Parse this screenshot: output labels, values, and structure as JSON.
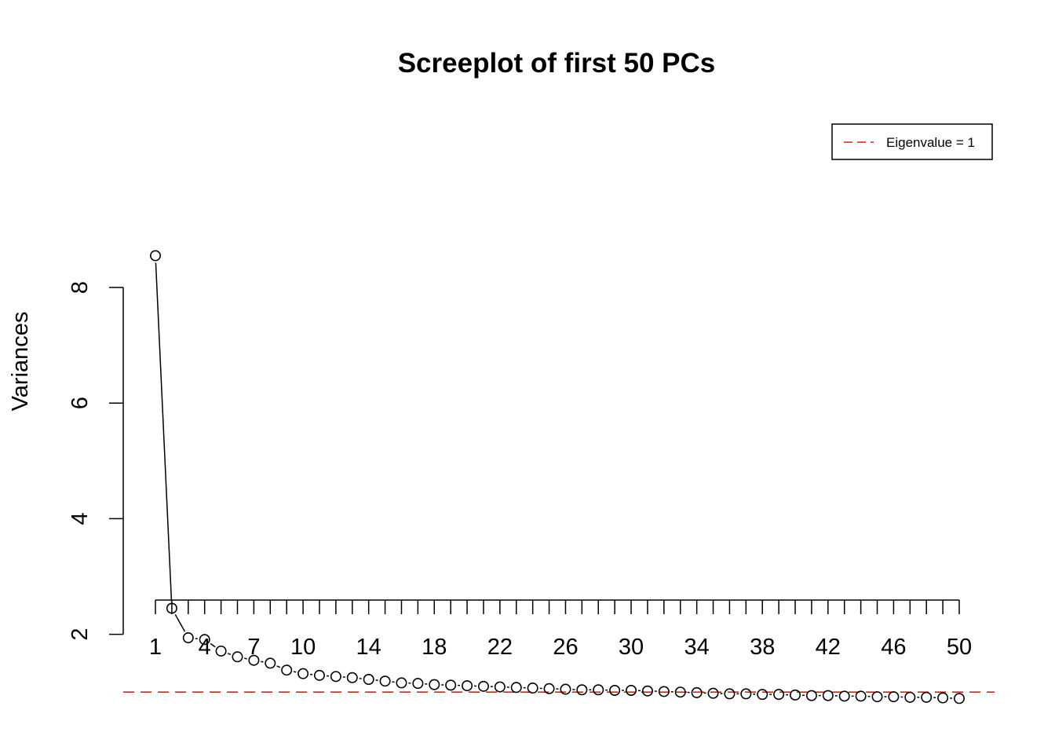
{
  "chart_data": {
    "type": "line",
    "title": "Screeplot of first 50 PCs",
    "xlabel": "",
    "ylabel": "Variances",
    "x": [
      1,
      2,
      3,
      4,
      5,
      6,
      7,
      8,
      9,
      10,
      11,
      12,
      13,
      14,
      15,
      16,
      17,
      18,
      19,
      20,
      21,
      22,
      23,
      24,
      25,
      26,
      27,
      28,
      29,
      30,
      31,
      32,
      33,
      34,
      35,
      36,
      37,
      38,
      39,
      40,
      41,
      42,
      43,
      44,
      45,
      46,
      47,
      48,
      49,
      50
    ],
    "x_tick_labels": [
      "1",
      "4",
      "7",
      "10",
      "14",
      "18",
      "22",
      "26",
      "30",
      "34",
      "38",
      "42",
      "46",
      "50"
    ],
    "x_tick_label_values": [
      1,
      4,
      7,
      10,
      14,
      18,
      22,
      26,
      30,
      34,
      38,
      42,
      46,
      50
    ],
    "y_ticks": [
      2,
      4,
      6,
      8
    ],
    "y_tick_labels": [
      "2",
      "4",
      "6",
      "8"
    ],
    "ylim": [
      0.7,
      8.6
    ],
    "series": [
      {
        "values": [
          8.55,
          2.45,
          1.94,
          1.91,
          1.71,
          1.61,
          1.55,
          1.5,
          1.38,
          1.32,
          1.29,
          1.27,
          1.25,
          1.22,
          1.19,
          1.16,
          1.15,
          1.13,
          1.12,
          1.11,
          1.1,
          1.09,
          1.08,
          1.07,
          1.06,
          1.05,
          1.04,
          1.04,
          1.03,
          1.03,
          1.02,
          1.01,
          1.0,
          0.99,
          0.98,
          0.97,
          0.97,
          0.96,
          0.96,
          0.95,
          0.94,
          0.94,
          0.93,
          0.93,
          0.92,
          0.92,
          0.91,
          0.91,
          0.9,
          0.89
        ],
        "color": "#000000",
        "marker": "open-circle"
      }
    ],
    "reference_line": {
      "y": 1,
      "style": "dashed",
      "color": "#DF1F1F",
      "legend_label": "Eigenvalue = 1"
    },
    "legend": {
      "placement": "top-right"
    },
    "grid": false
  }
}
